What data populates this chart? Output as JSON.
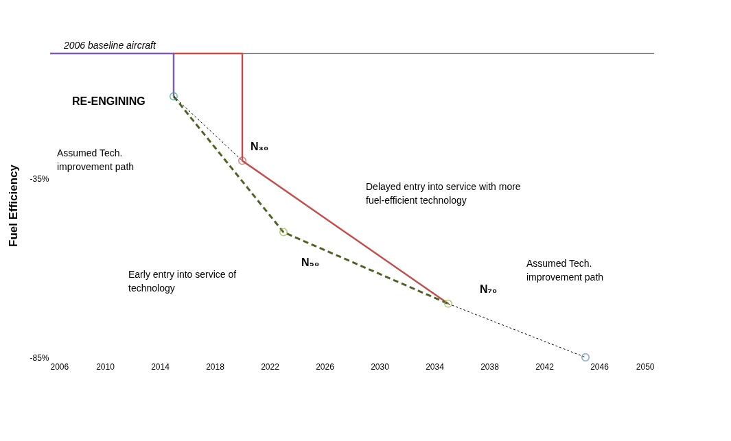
{
  "chart_data": {
    "type": "line",
    "ylabel": "Fuel Efficiency",
    "xlim": [
      2006,
      2050
    ],
    "xticks": [
      2006,
      2010,
      2014,
      2018,
      2022,
      2026,
      2030,
      2034,
      2038,
      2042,
      2046,
      2050
    ],
    "ylim": [
      -85,
      0
    ],
    "yticks": [
      {
        "value": -35,
        "label": "-35%"
      },
      {
        "value": -85,
        "label": "-85%"
      }
    ],
    "grid": false,
    "legend": false,
    "ref_lines": [
      {
        "axis": "y",
        "value": 0,
        "color": "#888888"
      }
    ],
    "series": [
      {
        "type": "line",
        "color": "#7b5ea7",
        "x": [
          2006,
          2015,
          2015
        ],
        "values": [
          0,
          0,
          -12
        ],
        "line_style": "solid"
      },
      {
        "type": "line",
        "color": "#c0504d",
        "x": [
          2015,
          2020,
          2020,
          2035
        ],
        "values": [
          0,
          0,
          -30,
          -70
        ],
        "line_style": "solid"
      },
      {
        "type": "line",
        "color": "#4f6228",
        "x": [
          2015,
          2023,
          2035
        ],
        "values": [
          -12,
          -50,
          -70
        ],
        "line_style": "dashed"
      },
      {
        "type": "line",
        "color": "#000000",
        "x": [
          2015,
          2020
        ],
        "values": [
          -12,
          -30
        ],
        "line_style": "dotted"
      },
      {
        "type": "line",
        "color": "#000000",
        "x": [
          2035,
          2045
        ],
        "values": [
          -70,
          -85
        ],
        "line_style": "dotted"
      },
      {
        "type": "scatter",
        "marker": "circle",
        "x": [
          2015,
          2020,
          2023,
          2035,
          2045
        ],
        "values": [
          -12,
          -30,
          -50,
          -70,
          -85
        ],
        "colors": [
          "#2a9d8f",
          "#c0504d",
          "#8db33a",
          "#8db33a",
          "#4a7fc1"
        ]
      }
    ],
    "annotations": [
      {
        "text": "2006 baseline aircraft",
        "x": 2007,
        "y": 0
      },
      "RE-ENGINING",
      "Assumed Tech.\nimprovement path",
      "N₃₀",
      "Delayed entry into service with more\nfuel-efficient technology",
      "Early entry into service of\ntechnology",
      "N₅₀",
      "N₇₀",
      "Assumed Tech.\nimprovement path"
    ]
  }
}
